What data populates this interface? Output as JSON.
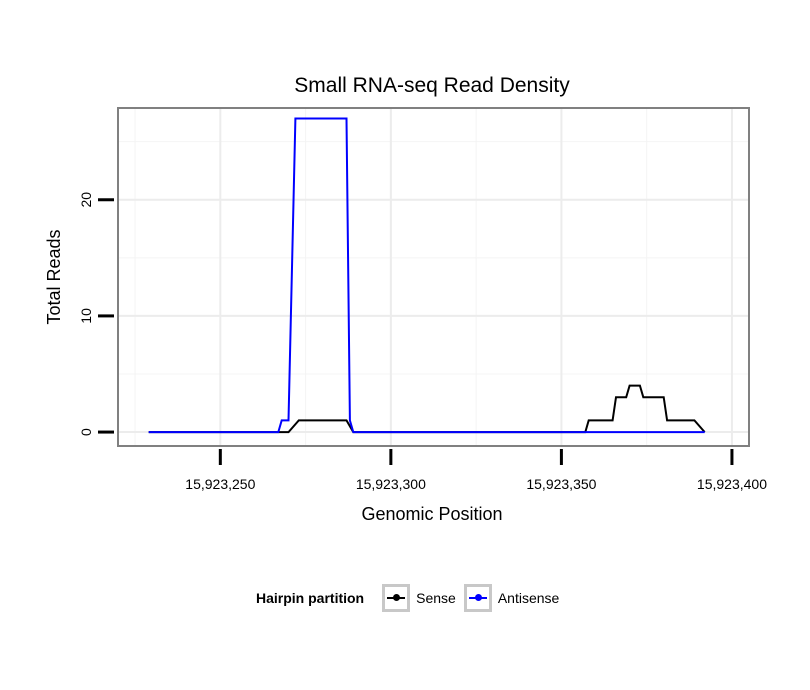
{
  "chart_data": {
    "type": "line",
    "title": "Small RNA-seq Read Density",
    "xlabel": "Genomic Position",
    "ylabel": "Total Reads",
    "xlim": [
      15923220,
      15923405
    ],
    "ylim": [
      -1.2,
      27.9
    ],
    "x_ticks": [
      15923250,
      15923300,
      15923350,
      15923400
    ],
    "x_tick_labels": [
      "15,923,250",
      "15,923,300",
      "15,923,350",
      "15,923,400"
    ],
    "y_ticks": [
      0,
      10,
      20
    ],
    "y_tick_labels": [
      "0",
      "10",
      "20"
    ],
    "grid": true,
    "legend": {
      "title": "Hairpin partition",
      "position": "bottom"
    },
    "series": [
      {
        "name": "Sense",
        "color": "#000000",
        "points": [
          [
            15923229,
            0
          ],
          [
            15923270,
            0
          ],
          [
            15923273,
            1
          ],
          [
            15923287,
            1
          ],
          [
            15923289,
            0
          ],
          [
            15923357,
            0
          ],
          [
            15923358,
            1
          ],
          [
            15923365,
            1
          ],
          [
            15923366,
            3
          ],
          [
            15923369,
            3
          ],
          [
            15923370,
            4
          ],
          [
            15923373,
            4
          ],
          [
            15923374,
            3
          ],
          [
            15923380,
            3
          ],
          [
            15923381,
            1
          ],
          [
            15923389,
            1
          ],
          [
            15923392,
            0
          ]
        ]
      },
      {
        "name": "Antisense",
        "color": "#0000ff",
        "points": [
          [
            15923229,
            0
          ],
          [
            15923267,
            0
          ],
          [
            15923268,
            1
          ],
          [
            15923270,
            1
          ],
          [
            15923272,
            27
          ],
          [
            15923287,
            27
          ],
          [
            15923288,
            1
          ],
          [
            15923289,
            0
          ],
          [
            15923392,
            0
          ]
        ]
      }
    ]
  }
}
